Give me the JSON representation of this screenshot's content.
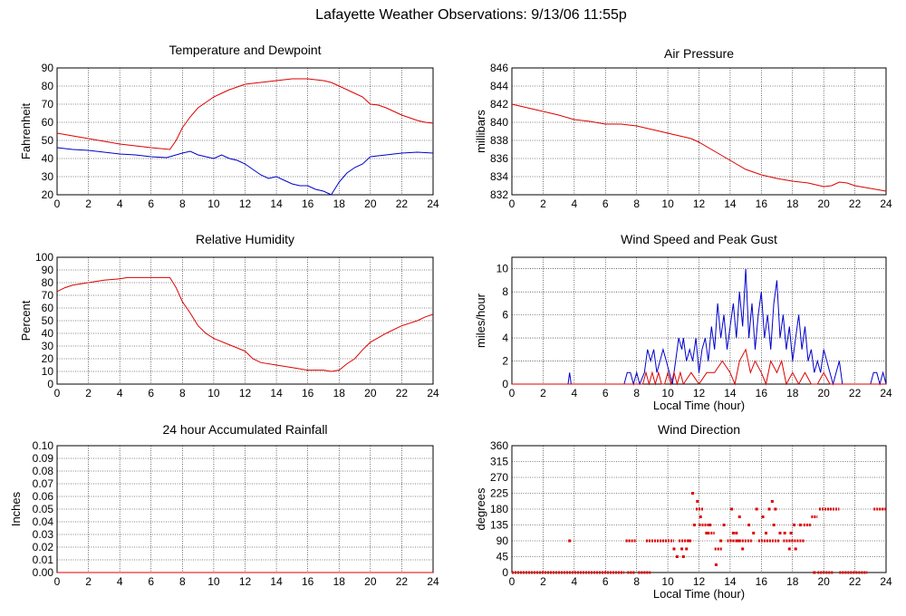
{
  "page": {
    "title": "Lafayette Weather Observations: 9/13/06 11:55p"
  },
  "colors": {
    "temp": "#dd0000",
    "dew": "#0000cc",
    "grid": "#000000"
  },
  "chart_data": [
    {
      "id": "temp",
      "type": "line",
      "title": "Temperature and Dewpoint",
      "ylabel": "Fahrenheit",
      "xlabel": "",
      "xlim": [
        0,
        24
      ],
      "ylim": [
        20,
        90
      ],
      "xticks": [
        "0",
        "2",
        "4",
        "6",
        "8",
        "10",
        "12",
        "14",
        "16",
        "18",
        "20",
        "22",
        "24"
      ],
      "yticks": [
        "20",
        "30",
        "40",
        "50",
        "60",
        "70",
        "80",
        "90"
      ],
      "series": [
        {
          "color": "#dd0000",
          "x": [
            0,
            1,
            2,
            3,
            4,
            5,
            6,
            7.2,
            7.6,
            8,
            8.5,
            9,
            9.5,
            10,
            10.5,
            11,
            11.5,
            12,
            12.5,
            13,
            14,
            15,
            16,
            17,
            17.5,
            18,
            18.5,
            19,
            19.5,
            20,
            20.5,
            21,
            21.5,
            22,
            22.5,
            23,
            23.5,
            24
          ],
          "y": [
            54,
            52.5,
            51,
            49.5,
            48,
            47,
            46,
            45,
            50,
            57,
            63,
            68,
            71,
            74,
            76,
            78,
            79.5,
            81,
            81.5,
            82,
            83,
            84,
            84,
            83,
            82,
            80,
            78,
            76,
            74,
            70,
            69.5,
            68,
            66,
            64,
            62.5,
            61,
            60,
            59.5
          ]
        },
        {
          "color": "#0000cc",
          "x": [
            0,
            1,
            2,
            3,
            4,
            5,
            6,
            7,
            8,
            8.5,
            9,
            9.5,
            10,
            10.5,
            11,
            11.5,
            12,
            12.5,
            13,
            13.5,
            14,
            14.5,
            15,
            15.5,
            16,
            16.5,
            17,
            17.5,
            18,
            18.5,
            19,
            19.5,
            20,
            21,
            22,
            23,
            24
          ],
          "y": [
            46,
            45,
            44.5,
            43.5,
            42.5,
            42,
            41,
            40.5,
            43,
            44,
            42,
            41,
            40,
            42,
            40,
            39,
            37,
            34,
            31,
            29,
            30,
            28,
            26,
            25,
            25,
            23,
            22,
            20,
            27,
            32,
            35,
            37,
            41,
            42,
            43,
            43.5,
            43
          ]
        }
      ]
    },
    {
      "id": "pressure",
      "type": "line",
      "title": "Air Pressure",
      "ylabel": "millibars",
      "xlabel": "",
      "xlim": [
        0,
        24
      ],
      "ylim": [
        832,
        846
      ],
      "xticks": [
        "0",
        "2",
        "4",
        "6",
        "8",
        "10",
        "12",
        "14",
        "16",
        "18",
        "20",
        "22",
        "24"
      ],
      "yticks": [
        "832",
        "834",
        "836",
        "838",
        "840",
        "842",
        "844",
        "846"
      ],
      "series": [
        {
          "color": "#dd0000",
          "x": [
            0,
            1,
            2,
            3,
            4,
            5,
            6,
            7,
            8,
            9,
            10,
            11,
            11.5,
            12,
            13,
            14,
            15,
            16,
            17,
            18,
            19,
            19.5,
            20,
            20.5,
            21,
            21.5,
            22,
            23,
            24
          ],
          "y": [
            842,
            841.6,
            841.2,
            840.8,
            840.3,
            840.1,
            839.8,
            839.8,
            839.6,
            839.2,
            838.8,
            838.4,
            838.2,
            837.8,
            836.8,
            835.8,
            834.8,
            834.2,
            833.8,
            833.5,
            833.3,
            833.1,
            832.9,
            833,
            833.4,
            833.3,
            833,
            832.7,
            832.4
          ]
        }
      ]
    },
    {
      "id": "humidity",
      "type": "line",
      "title": "Relative Humidity",
      "ylabel": "Percent",
      "xlabel": "",
      "xlim": [
        0,
        24
      ],
      "ylim": [
        0,
        100
      ],
      "xticks": [
        "0",
        "2",
        "4",
        "6",
        "8",
        "10",
        "12",
        "14",
        "16",
        "18",
        "20",
        "22",
        "24"
      ],
      "yticks": [
        "0",
        "10",
        "20",
        "30",
        "40",
        "50",
        "60",
        "70",
        "80",
        "90",
        "100"
      ],
      "series": [
        {
          "color": "#dd0000",
          "x": [
            0,
            0.5,
            1,
            2,
            3,
            4,
            4.5,
            5,
            6,
            7,
            7.2,
            7.6,
            8,
            8.5,
            9,
            9.5,
            10,
            11,
            12,
            12.5,
            13,
            14,
            15,
            16,
            17,
            17.5,
            18,
            18.5,
            19,
            19.5,
            20,
            21,
            22,
            22.5,
            23,
            23.5,
            24
          ],
          "y": [
            73,
            76,
            78,
            80,
            82,
            83,
            84,
            84,
            84,
            84,
            84,
            76,
            65,
            56,
            46,
            40,
            36,
            31,
            26,
            20,
            17,
            15,
            13,
            11,
            11,
            10,
            11,
            16,
            20,
            27,
            33,
            40,
            46,
            48,
            50,
            53,
            55
          ]
        }
      ]
    },
    {
      "id": "wind",
      "type": "line",
      "title": "Wind Speed and Peak Gust",
      "ylabel": "miles/hour",
      "xlabel": "Local Time (hour)",
      "xlim": [
        0,
        24
      ],
      "ylim": [
        0,
        11
      ],
      "xticks": [
        "0",
        "2",
        "4",
        "6",
        "8",
        "10",
        "12",
        "14",
        "16",
        "18",
        "20",
        "22",
        "24"
      ],
      "yticks": [
        "0",
        "2",
        "4",
        "6",
        "8",
        "10"
      ],
      "series": [
        {
          "color": "#0000cc",
          "x": [
            0,
            3.6,
            3.7,
            3.8,
            3.9,
            7.2,
            7.4,
            7.6,
            7.8,
            8,
            8.2,
            8.5,
            8.7,
            8.9,
            9.1,
            9.3,
            9.5,
            9.7,
            9.9,
            10.1,
            10.3,
            10.5,
            10.7,
            10.9,
            11,
            11.2,
            11.4,
            11.6,
            11.8,
            12,
            12.2,
            12.4,
            12.6,
            12.8,
            13,
            13.2,
            13.4,
            13.6,
            13.8,
            14,
            14.2,
            14.4,
            14.6,
            14.8,
            15,
            15.2,
            15.4,
            15.6,
            15.8,
            16,
            16.2,
            16.4,
            16.6,
            16.8,
            17,
            17.2,
            17.4,
            17.6,
            17.8,
            18,
            18.2,
            18.4,
            18.6,
            18.8,
            19,
            19.2,
            19.4,
            19.6,
            19.8,
            20,
            20.2,
            20.4,
            20.6,
            20.8,
            21,
            21.2,
            21.4,
            23,
            23.2,
            23.4,
            23.6,
            23.8,
            24
          ],
          "y": [
            0,
            0,
            1,
            0,
            0,
            0,
            1,
            1,
            0,
            1,
            0,
            1,
            3,
            2,
            3,
            1,
            2,
            3,
            2,
            1,
            0,
            2,
            4,
            3,
            4,
            2,
            3,
            2,
            4,
            1,
            3,
            4,
            2,
            5,
            3,
            7,
            4,
            6,
            3,
            5,
            7,
            4,
            8,
            5,
            10,
            4,
            7,
            3,
            6,
            8,
            4,
            6,
            3,
            7,
            9,
            4,
            6,
            3,
            5,
            2,
            4,
            6,
            3,
            5,
            2,
            3,
            1,
            2,
            1,
            3,
            2,
            1,
            0,
            1,
            2,
            0,
            0,
            0,
            1,
            1,
            0,
            1,
            0
          ]
        },
        {
          "color": "#dd0000",
          "x": [
            0,
            8.4,
            8.6,
            8.8,
            9,
            9.2,
            9.4,
            9.6,
            9.8,
            10,
            10.2,
            10.4,
            10.6,
            10.8,
            11,
            11.5,
            12,
            12.5,
            13,
            13.5,
            14,
            14.3,
            14.6,
            15,
            15.3,
            15.6,
            16,
            16.3,
            16.6,
            17,
            17.3,
            17.6,
            18,
            18.4,
            18.8,
            19.2,
            19.6,
            20,
            20.4,
            20.8,
            24
          ],
          "y": [
            0,
            0,
            1,
            0,
            1,
            0,
            1,
            0,
            0,
            1,
            0,
            1,
            0,
            1,
            0,
            1,
            0,
            1,
            1,
            2,
            1,
            0,
            2,
            3,
            1,
            2,
            1,
            0,
            2,
            1,
            2,
            0,
            1,
            0,
            1,
            0,
            0,
            1,
            0,
            0,
            0
          ]
        }
      ]
    },
    {
      "id": "rain",
      "type": "line",
      "title": "24 hour Accumulated Rainfall",
      "ylabel": "Inches",
      "xlabel": "",
      "xlim": [
        0,
        24
      ],
      "ylim": [
        0,
        0.1
      ],
      "xticks": [
        "0",
        "2",
        "4",
        "6",
        "8",
        "10",
        "12",
        "14",
        "16",
        "18",
        "20",
        "22",
        "24"
      ],
      "yticks": [
        "0.00",
        "0.01",
        "0.02",
        "0.03",
        "0.04",
        "0.05",
        "0.06",
        "0.07",
        "0.08",
        "0.09",
        "0.10"
      ],
      "series": [
        {
          "color": "#dd0000",
          "x": [
            0,
            24
          ],
          "y": [
            0,
            0
          ]
        }
      ]
    },
    {
      "id": "direction",
      "type": "scatter",
      "title": "Wind Direction",
      "ylabel": "degrees",
      "xlabel": "Local Time (hour)",
      "xlim": [
        0,
        24
      ],
      "ylim": [
        0,
        360
      ],
      "xticks": [
        "0",
        "2",
        "4",
        "6",
        "8",
        "10",
        "12",
        "14",
        "16",
        "18",
        "20",
        "22",
        "24"
      ],
      "yticks": [
        "0",
        "45",
        "90",
        "135",
        "180",
        "225",
        "270",
        "315",
        "360"
      ],
      "series": [
        {
          "color": "#dd0000",
          "segments": [
            [
              0,
              7.2,
              0
            ],
            [
              7.4,
              7.9,
              0
            ],
            [
              8.1,
              8.9,
              0
            ],
            [
              7.3,
              8,
              90
            ],
            [
              8.6,
              10.4,
              90
            ],
            [
              10.7,
              11.5,
              90
            ],
            [
              11.8,
              12.3,
              180
            ],
            [
              12,
              12.6,
              135
            ],
            [
              12.4,
              13,
              112
            ],
            [
              13,
              13.5,
              67
            ],
            [
              13.8,
              14.6,
              90
            ],
            [
              14.4,
              15.4,
              90
            ],
            [
              15.8,
              17.2,
              90
            ],
            [
              17.4,
              18.8,
              90
            ],
            [
              18.7,
              19.2,
              135
            ],
            [
              19.2,
              19.6,
              158
            ],
            [
              19.7,
              21,
              180
            ],
            [
              21,
              22.8,
              0
            ],
            [
              23.2,
              24,
              180
            ],
            [
              19.6,
              20.6,
              0
            ]
          ],
          "points": [
            [
              3.7,
              90
            ],
            [
              10.4,
              67
            ],
            [
              10.6,
              45
            ],
            [
              10.9,
              67
            ],
            [
              11,
              45
            ],
            [
              11.2,
              67
            ],
            [
              11.4,
              90
            ],
            [
              11.6,
              225
            ],
            [
              11.7,
              135
            ],
            [
              11.9,
              202
            ],
            [
              12.1,
              158
            ],
            [
              12.5,
              112
            ],
            [
              12.7,
              135
            ],
            [
              13.1,
              22
            ],
            [
              13.4,
              90
            ],
            [
              13.6,
              135
            ],
            [
              14.1,
              180
            ],
            [
              14.2,
              112
            ],
            [
              14.4,
              112
            ],
            [
              14.6,
              158
            ],
            [
              14.8,
              67
            ],
            [
              15.2,
              135
            ],
            [
              15.5,
              112
            ],
            [
              15.7,
              180
            ],
            [
              16.1,
              158
            ],
            [
              16.3,
              112
            ],
            [
              16.5,
              180
            ],
            [
              16.7,
              202
            ],
            [
              16.8,
              135
            ],
            [
              16.9,
              180
            ],
            [
              17.2,
              112
            ],
            [
              17.5,
              112
            ],
            [
              17.8,
              67
            ],
            [
              17.9,
              112
            ],
            [
              18.1,
              135
            ],
            [
              18.2,
              67
            ],
            [
              18.5,
              135
            ],
            [
              19.4,
              0
            ]
          ]
        }
      ]
    }
  ]
}
